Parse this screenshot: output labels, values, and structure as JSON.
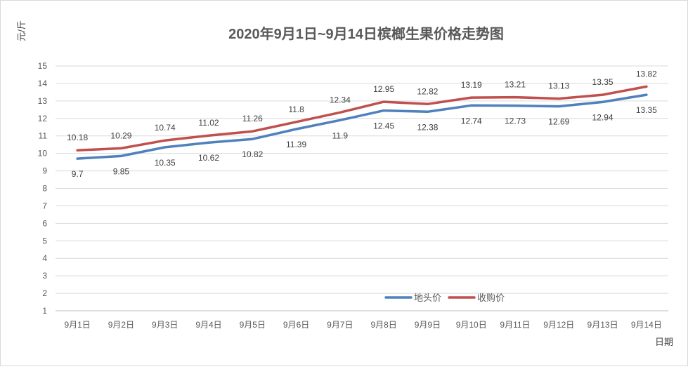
{
  "chart_data": {
    "type": "line",
    "title": "2020年9月1日~9月14日槟榔生果价格走势图",
    "xlabel": "日期",
    "ylabel": "元/斤",
    "ylim": [
      1,
      15
    ],
    "yticks": [
      1,
      2,
      3,
      4,
      5,
      6,
      7,
      8,
      9,
      10,
      11,
      12,
      13,
      14,
      15
    ],
    "grid": true,
    "legend_position": "bottom-right",
    "categories": [
      "9月1日",
      "9月2日",
      "9月3日",
      "9月4日",
      "9月5日",
      "9月6日",
      "9月7日",
      "9月8日",
      "9月9日",
      "9月10日",
      "9月11日",
      "9月12日",
      "9月13日",
      "9月14日"
    ],
    "series": [
      {
        "name": "地头价",
        "color": "#4f81bd",
        "values": [
          9.7,
          9.85,
          10.35,
          10.62,
          10.82,
          11.39,
          11.9,
          12.45,
          12.38,
          12.74,
          12.73,
          12.69,
          12.94,
          13.35
        ],
        "labels": [
          "9.7",
          "9.85",
          "10.35",
          "10.62",
          "10.82",
          "11.39",
          "11.9",
          "12.45",
          "12.38",
          "12.74",
          "12.73",
          "12.69",
          "12.94",
          "13.35"
        ],
        "label_position": "below"
      },
      {
        "name": "收购价",
        "color": "#c0504d",
        "values": [
          10.18,
          10.29,
          10.74,
          11.02,
          11.26,
          11.8,
          12.34,
          12.95,
          12.82,
          13.19,
          13.21,
          13.13,
          13.35,
          13.82
        ],
        "labels": [
          "10.18",
          "10.29",
          "10.74",
          "11.02",
          "11.26",
          "11.8",
          "12.34",
          "12.95",
          "12.82",
          "13.19",
          "13.21",
          "13.13",
          "13.35",
          "13.82"
        ],
        "label_position": "above"
      }
    ]
  }
}
